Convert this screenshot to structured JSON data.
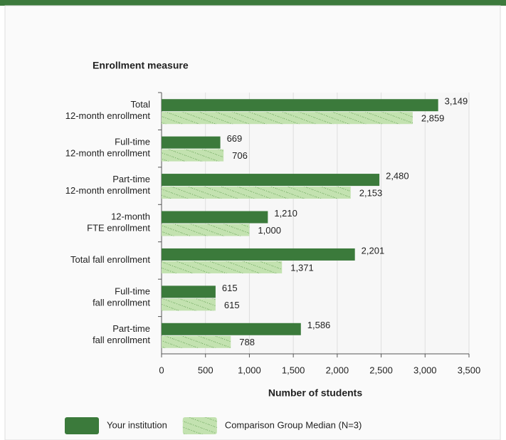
{
  "chart_data": {
    "type": "bar",
    "orientation": "horizontal",
    "title": "Enrollment measure",
    "xlabel": "Number of students",
    "categories": [
      [
        "Total",
        "12-month enrollment"
      ],
      [
        "Full-time",
        "12-month enrollment"
      ],
      [
        "Part-time",
        "12-month enrollment"
      ],
      [
        "12-month",
        "FTE enrollment"
      ],
      [
        "Total fall enrollment"
      ],
      [
        "Full-time",
        "fall enrollment"
      ],
      [
        "Part-time",
        "fall enrollment"
      ]
    ],
    "series": [
      {
        "name": "Your institution",
        "color": "#3b7a3b",
        "values": [
          3149,
          669,
          2480,
          1210,
          2201,
          615,
          1586
        ],
        "value_labels": [
          "3,149",
          "669",
          "2,480",
          "1,210",
          "2,201",
          "615",
          "1,586"
        ]
      },
      {
        "name": "Comparison Group Median (N=3)",
        "color": "#c3e2b0",
        "pattern": "hatch",
        "values": [
          2859,
          706,
          2153,
          1000,
          1371,
          615,
          788
        ],
        "value_labels": [
          "2,859",
          "706",
          "2,153",
          "1,000",
          "1,371",
          "615",
          "788"
        ]
      }
    ],
    "xlim": [
      0,
      3500
    ],
    "xticks": [
      0,
      500,
      {
        "value": 1000,
        "label": "1,000"
      },
      {
        "value": 1500,
        "label": "1,500"
      },
      {
        "value": 2000,
        "label": "2,000"
      },
      {
        "value": 2500,
        "label": "2,500"
      },
      {
        "value": 3000,
        "label": "3,000"
      },
      {
        "value": 3500,
        "label": "3,500"
      }
    ],
    "grid": true,
    "legend": "bottom"
  }
}
